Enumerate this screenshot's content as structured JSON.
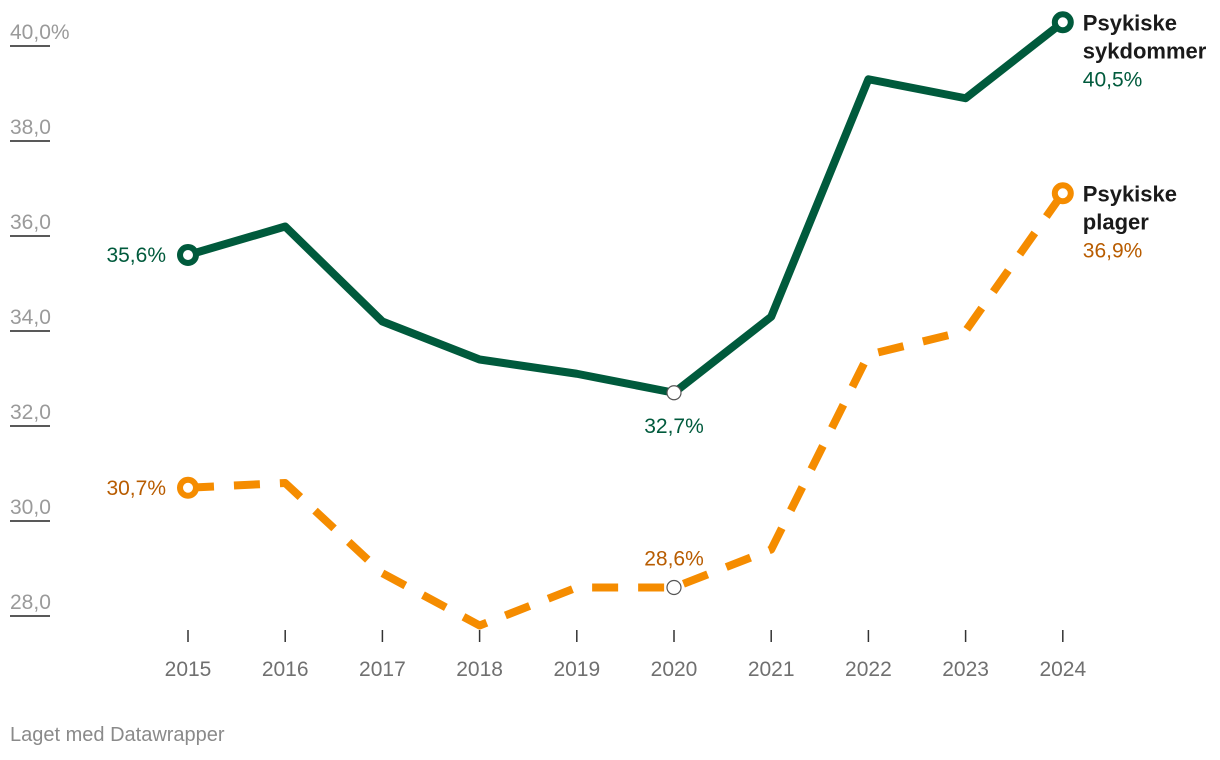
{
  "chart_data": {
    "type": "line",
    "x": [
      "2015",
      "2016",
      "2017",
      "2018",
      "2019",
      "2020",
      "2021",
      "2022",
      "2023",
      "2024"
    ],
    "ylim": [
      27.5,
      40.5
    ],
    "yticks": [
      28,
      30,
      32,
      34,
      36,
      38,
      40
    ],
    "ytick_labels": [
      "28,0",
      "30,0",
      "32,0",
      "34,0",
      "36,0",
      "38,0",
      "40,0%"
    ],
    "grid": false,
    "series": [
      {
        "name_lines": [
          "Psykiske",
          "sykdommer"
        ],
        "value_label": "40,5%",
        "color": "#005a3c",
        "text_color": "#005a3c",
        "dash": "solid",
        "values": [
          35.6,
          36.2,
          34.2,
          33.4,
          33.1,
          32.7,
          34.3,
          39.3,
          38.9,
          40.5
        ],
        "annotations": [
          {
            "index": 0,
            "label": "35,6%",
            "position": "left"
          },
          {
            "index": 5,
            "label": "32,7%",
            "position": "below"
          }
        ]
      },
      {
        "name_lines": [
          "Psykiske",
          "plager"
        ],
        "value_label": "36,9%",
        "color": "#f58c00",
        "text_color": "#b85c00",
        "dash": "dashed",
        "values": [
          30.7,
          30.8,
          28.9,
          27.8,
          28.6,
          28.6,
          29.4,
          33.5,
          34.0,
          36.9
        ],
        "annotations": [
          {
            "index": 0,
            "label": "30,7%",
            "position": "left"
          },
          {
            "index": 5,
            "label": "28,6%",
            "position": "above"
          }
        ]
      }
    ]
  },
  "footer": {
    "credit": "Laget med Datawrapper"
  }
}
